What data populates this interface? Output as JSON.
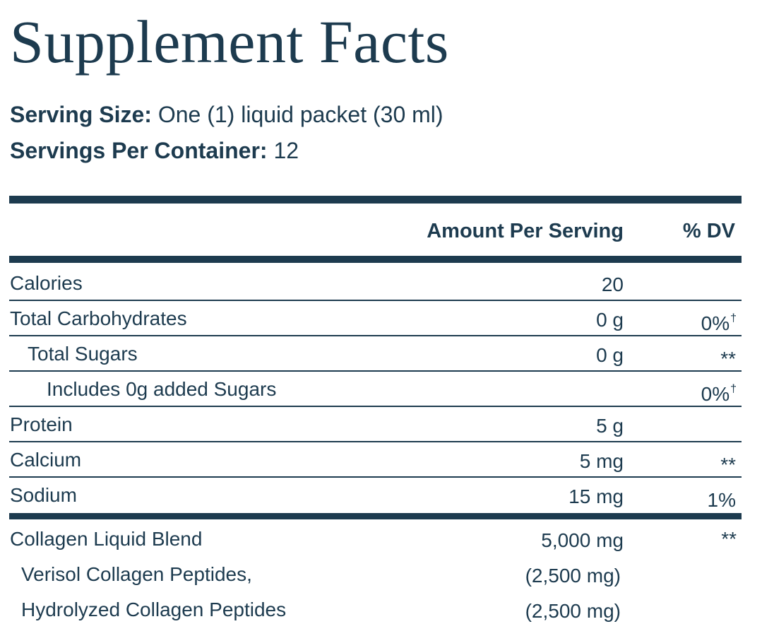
{
  "title": "Supplement Facts",
  "serving": {
    "size_label": "Serving Size:",
    "size_value": "One (1) liquid packet (30 ml)",
    "per_container_label": "Servings Per Container:",
    "per_container_value": "12"
  },
  "table": {
    "header_amount": "Amount Per Serving",
    "header_dv": "% DV",
    "rows": [
      {
        "name": "Calories",
        "amount": "20",
        "dv": "",
        "dagger": ""
      },
      {
        "name": "Total Carbohydrates",
        "amount": "0 g",
        "dv": "0%",
        "dagger": "†"
      },
      {
        "name": "Total Sugars",
        "amount": "0 g",
        "dv": "**",
        "dagger": ""
      },
      {
        "name": "Includes 0g added Sugars",
        "amount": "",
        "dv": "0%",
        "dagger": "†"
      },
      {
        "name": "Protein",
        "amount": "5 g",
        "dv": "",
        "dagger": ""
      },
      {
        "name": "Calcium",
        "amount": "5 mg",
        "dv": "**",
        "dagger": ""
      },
      {
        "name": "Sodium",
        "amount": "15 mg",
        "dv": "1%",
        "dagger": ""
      }
    ],
    "blend": {
      "name": "Collagen Liquid Blend",
      "amount": "5,000 mg",
      "dv": "**",
      "components": [
        {
          "name": "Verisol Collagen Peptides,",
          "amount": "(2,500 mg)"
        },
        {
          "name": "Hydrolyzed Collagen Peptides",
          "amount": "(2,500 mg)"
        }
      ]
    }
  },
  "colors": {
    "ink": "#1d3b4f",
    "background": "#ffffff"
  }
}
